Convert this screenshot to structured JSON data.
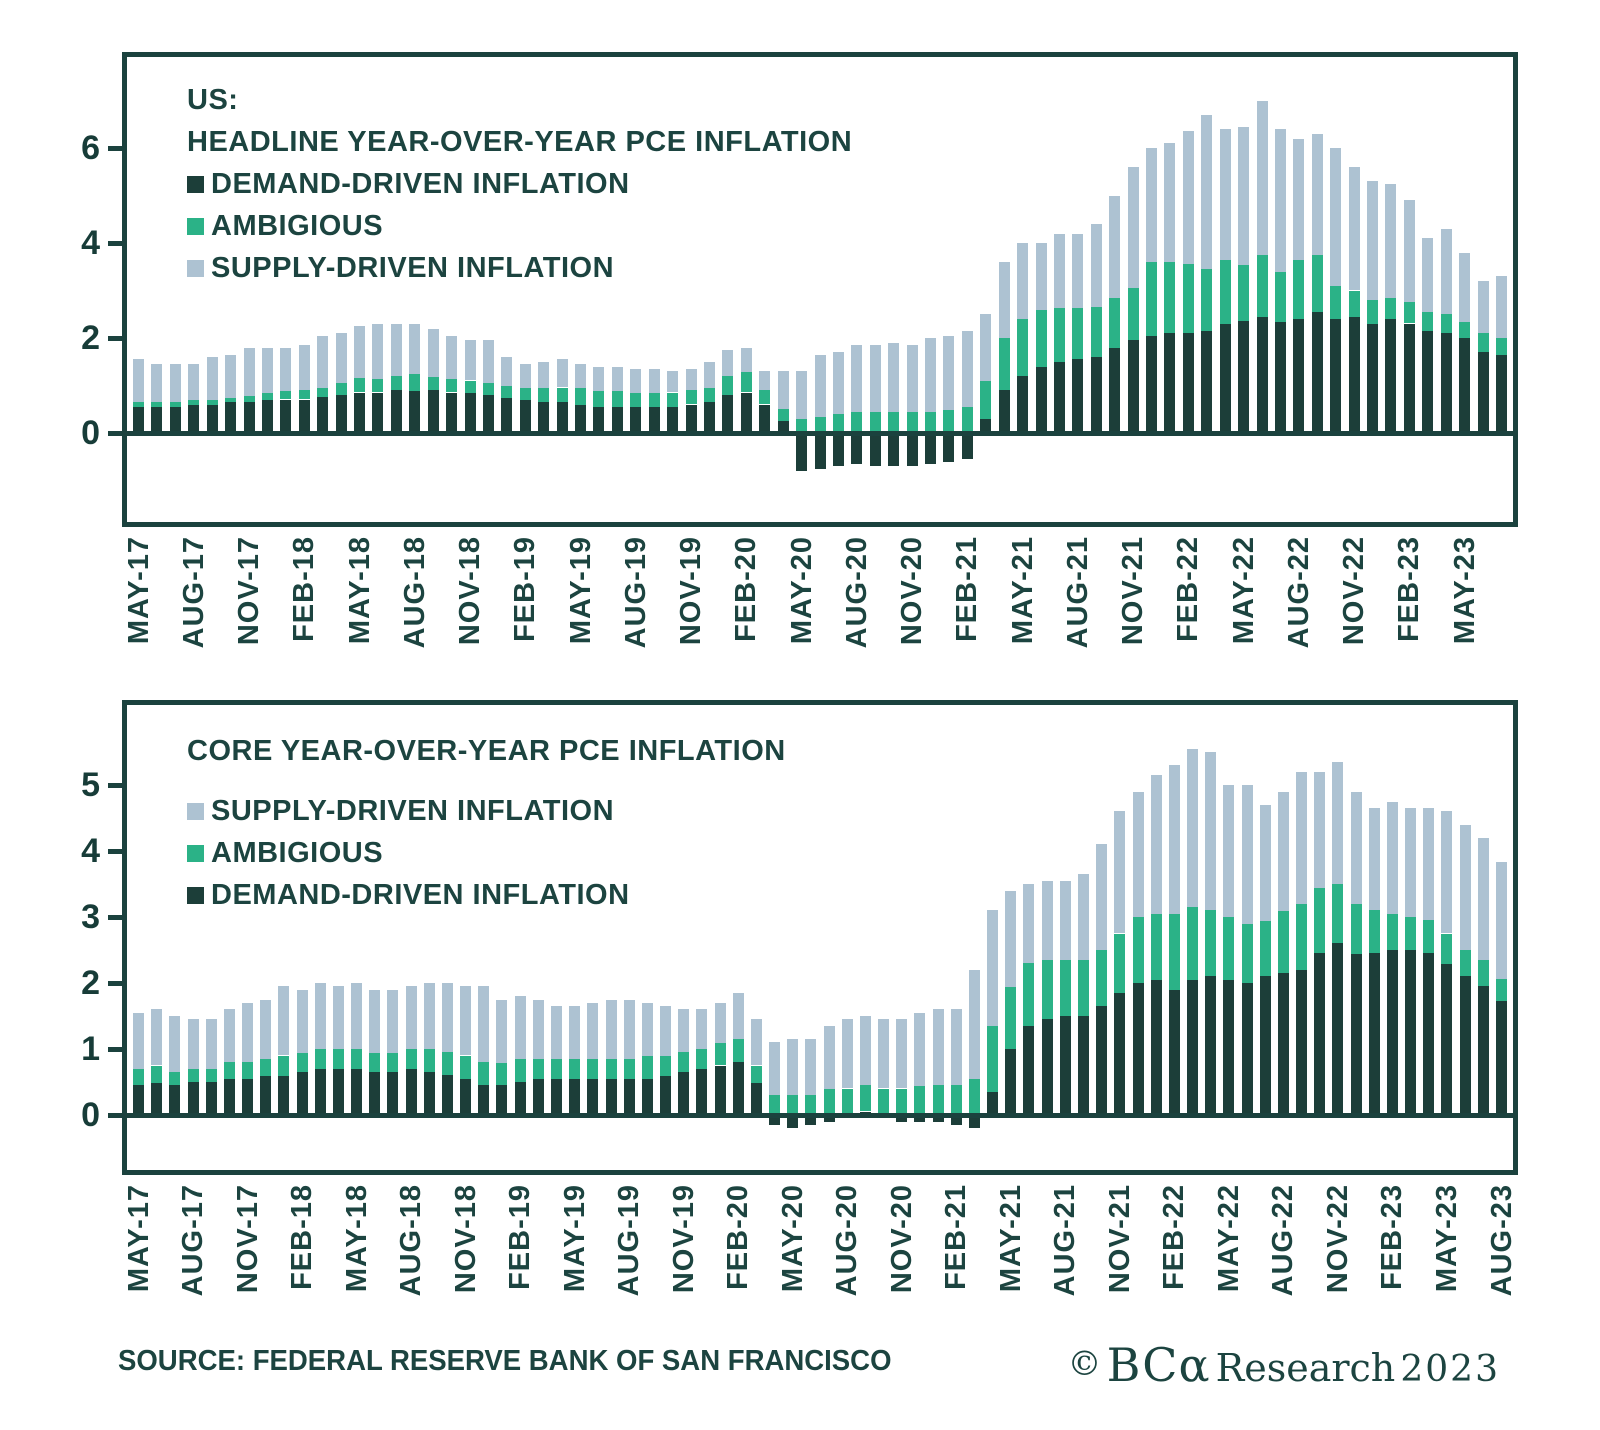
{
  "footer": {
    "source": "SOURCE: FEDERAL RESERVE BANK OF SAN FRANCISCO",
    "credit_symbol": "©",
    "credit_brand": "BCα",
    "credit_rest": "Research",
    "credit_year": "2023"
  },
  "colors": {
    "demand": "#1c3e39",
    "ambiguous": "#2bb287",
    "supply": "#adc2d2",
    "axis": "#1b423e",
    "text": "#1c4440"
  },
  "chart_data": [
    {
      "type": "bar",
      "stacked": true,
      "title_lines": [
        "US:",
        "HEADLINE YEAR-OVER-YEAR PCE INFLATION"
      ],
      "legend": [
        {
          "label": "DEMAND-DRIVEN INFLATION",
          "color": "#1c3e39"
        },
        {
          "label": "AMBIGIOUS",
          "color": "#2bb287"
        },
        {
          "label": "SUPPLY-DRIVEN INFLATION",
          "color": "#adc2d2"
        }
      ],
      "legend_position": "top-left",
      "grid": false,
      "ylim": [
        -2,
        8
      ],
      "yticks": [
        0,
        2,
        4,
        6
      ],
      "x_tick_every": 3,
      "categories": [
        "MAY-17",
        "JUN-17",
        "JUL-17",
        "AUG-17",
        "SEP-17",
        "OCT-17",
        "NOV-17",
        "DEC-17",
        "JAN-18",
        "FEB-18",
        "MAR-18",
        "APR-18",
        "MAY-18",
        "JUN-18",
        "JUL-18",
        "AUG-18",
        "SEP-18",
        "OCT-18",
        "NOV-18",
        "DEC-18",
        "JAN-19",
        "FEB-19",
        "MAR-19",
        "APR-19",
        "MAY-19",
        "JUN-19",
        "JUL-19",
        "AUG-19",
        "SEP-19",
        "OCT-19",
        "NOV-19",
        "DEC-19",
        "JAN-20",
        "FEB-20",
        "MAR-20",
        "APR-20",
        "MAY-20",
        "JUN-20",
        "JUL-20",
        "AUG-20",
        "SEP-20",
        "OCT-20",
        "NOV-20",
        "DEC-20",
        "JAN-21",
        "FEB-21",
        "MAR-21",
        "APR-21",
        "MAY-21",
        "JUN-21",
        "JUL-21",
        "AUG-21",
        "SEP-21",
        "OCT-21",
        "NOV-21",
        "DEC-21",
        "JAN-22",
        "FEB-22",
        "MAR-22",
        "APR-22",
        "MAY-22",
        "JUN-22",
        "JUL-22",
        "AUG-22",
        "SEP-22",
        "OCT-22",
        "NOV-22",
        "DEC-22",
        "JAN-23",
        "FEB-23",
        "MAR-23",
        "APR-23",
        "MAY-23",
        "JUN-23",
        "JUL-23"
      ],
      "series": [
        {
          "name": "DEMAND-DRIVEN INFLATION",
          "color": "#1c3e39",
          "values": [
            0.55,
            0.55,
            0.55,
            0.6,
            0.6,
            0.65,
            0.65,
            0.7,
            0.7,
            0.7,
            0.75,
            0.8,
            0.85,
            0.85,
            0.9,
            0.9,
            0.9,
            0.85,
            0.85,
            0.8,
            0.75,
            0.7,
            0.65,
            0.65,
            0.6,
            0.55,
            0.55,
            0.55,
            0.55,
            0.55,
            0.6,
            0.65,
            0.8,
            0.85,
            0.6,
            0.25,
            -0.8,
            -0.75,
            -0.7,
            -0.65,
            -0.7,
            -0.7,
            -0.7,
            -0.65,
            -0.6,
            -0.55,
            0.3,
            0.9,
            1.2,
            1.4,
            1.5,
            1.55,
            1.6,
            1.8,
            1.95,
            2.05,
            2.1,
            2.1,
            2.15,
            2.3,
            2.35,
            2.45,
            2.35,
            2.4,
            2.55,
            2.4,
            2.45,
            2.3,
            2.4,
            2.3,
            2.15,
            2.1,
            2.0,
            1.7,
            1.65
          ]
        },
        {
          "name": "AMBIGIOUS",
          "color": "#2bb287",
          "values": [
            0.1,
            0.1,
            0.1,
            0.1,
            0.1,
            0.1,
            0.15,
            0.15,
            0.2,
            0.2,
            0.2,
            0.25,
            0.3,
            0.3,
            0.3,
            0.35,
            0.3,
            0.3,
            0.25,
            0.25,
            0.25,
            0.25,
            0.3,
            0.3,
            0.35,
            0.35,
            0.35,
            0.3,
            0.3,
            0.3,
            0.3,
            0.3,
            0.4,
            0.45,
            0.3,
            0.25,
            0.3,
            0.35,
            0.4,
            0.45,
            0.45,
            0.45,
            0.45,
            0.45,
            0.5,
            0.55,
            0.8,
            1.1,
            1.2,
            1.2,
            1.15,
            1.1,
            1.05,
            1.05,
            1.1,
            1.55,
            1.5,
            1.45,
            1.3,
            1.35,
            1.2,
            1.3,
            1.05,
            1.25,
            1.2,
            0.7,
            0.55,
            0.5,
            0.45,
            0.45,
            0.4,
            0.4,
            0.35,
            0.4,
            0.35
          ]
        },
        {
          "name": "SUPPLY-DRIVEN INFLATION",
          "color": "#adc2d2",
          "values": [
            0.9,
            0.8,
            0.8,
            0.75,
            0.9,
            0.9,
            1.0,
            0.95,
            0.9,
            0.95,
            1.1,
            1.05,
            1.1,
            1.15,
            1.1,
            1.05,
            1.0,
            0.9,
            0.85,
            0.9,
            0.6,
            0.5,
            0.55,
            0.6,
            0.5,
            0.5,
            0.5,
            0.5,
            0.5,
            0.45,
            0.45,
            0.55,
            0.55,
            0.5,
            0.4,
            0.8,
            1.0,
            1.3,
            1.3,
            1.4,
            1.4,
            1.45,
            1.4,
            1.55,
            1.55,
            1.6,
            1.4,
            1.6,
            1.6,
            1.4,
            1.55,
            1.55,
            1.75,
            2.15,
            2.55,
            2.4,
            2.5,
            2.8,
            3.25,
            2.75,
            2.9,
            3.25,
            3.0,
            2.55,
            2.55,
            2.9,
            2.6,
            2.5,
            2.4,
            2.15,
            1.55,
            1.8,
            1.45,
            1.1,
            1.3
          ]
        }
      ]
    },
    {
      "type": "bar",
      "stacked": true,
      "title_lines": [
        "CORE YEAR-OVER-YEAR PCE INFLATION"
      ],
      "legend": [
        {
          "label": "SUPPLY-DRIVEN INFLATION",
          "color": "#adc2d2"
        },
        {
          "label": "AMBIGIOUS",
          "color": "#2bb287"
        },
        {
          "label": "DEMAND-DRIVEN INFLATION",
          "color": "#1c3e39"
        }
      ],
      "legend_position": "top-left",
      "grid": false,
      "ylim": [
        -1,
        6.3
      ],
      "yticks": [
        0,
        1,
        2,
        3,
        4,
        5
      ],
      "x_tick_every": 3,
      "categories": [
        "MAY-17",
        "JUN-17",
        "JUL-17",
        "AUG-17",
        "SEP-17",
        "OCT-17",
        "NOV-17",
        "DEC-17",
        "JAN-18",
        "FEB-18",
        "MAR-18",
        "APR-18",
        "MAY-18",
        "JUN-18",
        "JUL-18",
        "AUG-18",
        "SEP-18",
        "OCT-18",
        "NOV-18",
        "DEC-18",
        "JAN-19",
        "FEB-19",
        "MAR-19",
        "APR-19",
        "MAY-19",
        "JUN-19",
        "JUL-19",
        "AUG-19",
        "SEP-19",
        "OCT-19",
        "NOV-19",
        "DEC-19",
        "JAN-20",
        "FEB-20",
        "MAR-20",
        "APR-20",
        "MAY-20",
        "JUN-20",
        "JUL-20",
        "AUG-20",
        "SEP-20",
        "OCT-20",
        "NOV-20",
        "DEC-20",
        "JAN-21",
        "FEB-21",
        "MAR-21",
        "APR-21",
        "MAY-21",
        "JUN-21",
        "JUL-21",
        "AUG-21",
        "SEP-21",
        "OCT-21",
        "NOV-21",
        "DEC-21",
        "JAN-22",
        "FEB-22",
        "MAR-22",
        "APR-22",
        "MAY-22",
        "JUN-22",
        "JUL-22",
        "AUG-22",
        "SEP-22",
        "OCT-22",
        "NOV-22",
        "DEC-22",
        "JAN-23",
        "FEB-23",
        "MAR-23",
        "APR-23",
        "MAY-23",
        "JUN-23",
        "JUL-23",
        "AUG-23"
      ],
      "series": [
        {
          "name": "DEMAND-DRIVEN INFLATION",
          "color": "#1c3e39",
          "values": [
            0.45,
            0.5,
            0.45,
            0.5,
            0.5,
            0.55,
            0.55,
            0.6,
            0.6,
            0.65,
            0.7,
            0.7,
            0.7,
            0.65,
            0.65,
            0.7,
            0.65,
            0.6,
            0.55,
            0.45,
            0.45,
            0.5,
            0.55,
            0.55,
            0.55,
            0.55,
            0.55,
            0.55,
            0.55,
            0.6,
            0.65,
            0.7,
            0.75,
            0.8,
            0.5,
            -0.15,
            -0.2,
            -0.15,
            -0.1,
            -0.05,
            0.05,
            -0.05,
            -0.1,
            -0.1,
            -0.1,
            -0.15,
            -0.2,
            0.35,
            1.0,
            1.35,
            1.45,
            1.5,
            1.5,
            1.65,
            1.85,
            2.0,
            2.05,
            1.9,
            2.05,
            2.1,
            2.05,
            2.0,
            2.1,
            2.15,
            2.2,
            2.45,
            2.6,
            2.45,
            2.45,
            2.5,
            2.5,
            2.45,
            2.3,
            2.1,
            1.95,
            1.72
          ]
        },
        {
          "name": "AMBIGIOUS",
          "color": "#2bb287",
          "values": [
            0.25,
            0.25,
            0.2,
            0.2,
            0.2,
            0.25,
            0.25,
            0.25,
            0.3,
            0.3,
            0.3,
            0.3,
            0.3,
            0.3,
            0.3,
            0.3,
            0.35,
            0.35,
            0.35,
            0.35,
            0.35,
            0.35,
            0.3,
            0.3,
            0.3,
            0.3,
            0.3,
            0.3,
            0.35,
            0.3,
            0.3,
            0.3,
            0.35,
            0.35,
            0.25,
            0.3,
            0.3,
            0.3,
            0.4,
            0.4,
            0.4,
            0.4,
            0.4,
            0.45,
            0.45,
            0.45,
            0.55,
            1.0,
            0.95,
            0.95,
            0.9,
            0.85,
            0.85,
            0.85,
            0.9,
            1.0,
            1.0,
            1.15,
            1.1,
            1.0,
            0.95,
            0.9,
            0.85,
            0.95,
            1.0,
            1.0,
            0.9,
            0.75,
            0.65,
            0.55,
            0.5,
            0.5,
            0.45,
            0.4,
            0.4,
            0.34
          ]
        },
        {
          "name": "SUPPLY-DRIVEN INFLATION",
          "color": "#adc2d2",
          "values": [
            0.85,
            0.85,
            0.85,
            0.75,
            0.75,
            0.8,
            0.9,
            0.9,
            1.05,
            0.95,
            1.0,
            0.95,
            1.0,
            0.95,
            0.95,
            0.95,
            1.0,
            1.05,
            1.05,
            1.15,
            0.95,
            0.95,
            0.9,
            0.8,
            0.8,
            0.85,
            0.9,
            0.9,
            0.8,
            0.75,
            0.65,
            0.6,
            0.6,
            0.7,
            0.7,
            0.8,
            0.85,
            0.85,
            0.95,
            1.05,
            1.05,
            1.05,
            1.05,
            1.1,
            1.15,
            1.15,
            1.65,
            1.75,
            1.45,
            1.2,
            1.2,
            1.2,
            1.3,
            1.6,
            1.85,
            1.9,
            2.1,
            2.25,
            2.4,
            2.4,
            2.0,
            2.1,
            1.75,
            1.8,
            2.0,
            1.75,
            1.85,
            1.7,
            1.55,
            1.7,
            1.65,
            1.7,
            1.85,
            1.9,
            1.85,
            1.78
          ]
        }
      ]
    }
  ]
}
